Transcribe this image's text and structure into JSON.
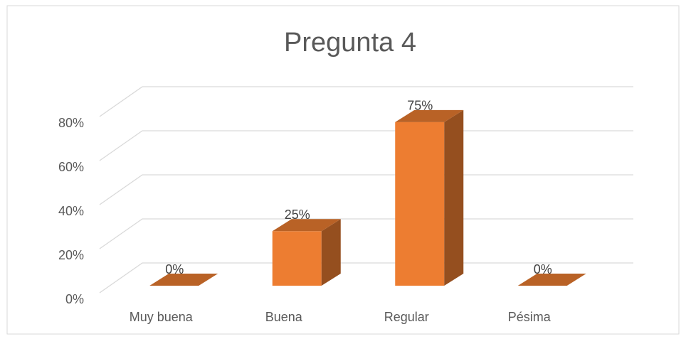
{
  "chart_data": {
    "type": "bar3d",
    "title": "Pregunta 4",
    "categories": [
      "Muy buena",
      "Buena",
      "Regular",
      "Pésima"
    ],
    "values": [
      0,
      25,
      75,
      0
    ],
    "value_labels": [
      "0%",
      "25%",
      "75%",
      "0%"
    ],
    "color": "#ed7d31",
    "ylim": [
      0,
      80
    ],
    "yticks": [
      {
        "value": 0,
        "label": "0%"
      },
      {
        "value": 20,
        "label": "20%"
      },
      {
        "value": 40,
        "label": "40%"
      },
      {
        "value": 60,
        "label": "60%"
      },
      {
        "value": 80,
        "label": "80%"
      }
    ],
    "grid": true
  }
}
